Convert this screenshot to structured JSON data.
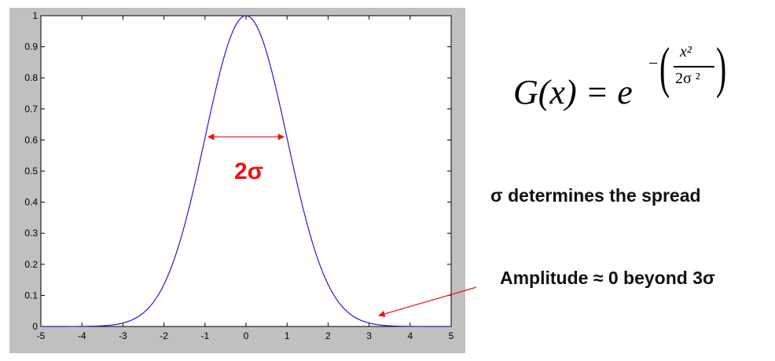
{
  "chart_data": {
    "type": "line",
    "title": "",
    "xlabel": "",
    "ylabel": "",
    "xlim": [
      -5,
      5
    ],
    "ylim": [
      0,
      1
    ],
    "x_ticks": [
      "-5",
      "-4",
      "-3",
      "-2",
      "-1",
      "0",
      "1",
      "2",
      "3",
      "4",
      "5"
    ],
    "y_ticks": [
      "0",
      "0.1",
      "0.2",
      "0.3",
      "0.4",
      "0.5",
      "0.6",
      "0.7",
      "0.8",
      "0.9",
      "1"
    ],
    "grid": false,
    "series": [
      {
        "color": "#1f1fd0",
        "x": [
          -5,
          -4.5,
          -4,
          -3.5,
          -3,
          -2.75,
          -2.5,
          -2.25,
          -2,
          -1.75,
          -1.5,
          -1.25,
          -1,
          -0.75,
          -0.5,
          -0.25,
          0,
          0.25,
          0.5,
          0.75,
          1,
          1.25,
          1.5,
          1.75,
          2,
          2.25,
          2.5,
          2.75,
          3,
          3.5,
          4,
          4.5,
          5
        ],
        "y": [
          0.0,
          0.0,
          0.0003,
          0.0022,
          0.0111,
          0.0228,
          0.0439,
          0.0796,
          0.1353,
          0.2163,
          0.3247,
          0.4578,
          0.6065,
          0.7548,
          0.8825,
          0.9692,
          1.0,
          0.9692,
          0.8825,
          0.7548,
          0.6065,
          0.4578,
          0.3247,
          0.2163,
          0.1353,
          0.0796,
          0.0439,
          0.0228,
          0.0111,
          0.0022,
          0.0003,
          0.0,
          0.0
        ]
      }
    ],
    "annotations": {
      "width_arrow": {
        "from": -1,
        "to": 1,
        "y": 0.61,
        "color": "#ee1111"
      },
      "width_label": "2σ",
      "tail_arrow_target": {
        "x": 3.2,
        "y": 0.03
      }
    }
  },
  "formula": {
    "main": "G(x) = e",
    "minus": "−",
    "numerator": "x²",
    "denominator": "2σ ²"
  },
  "notes": {
    "spread": "σ determines the spread",
    "amplitude": "Amplitude ≈ 0 beyond 3σ"
  }
}
